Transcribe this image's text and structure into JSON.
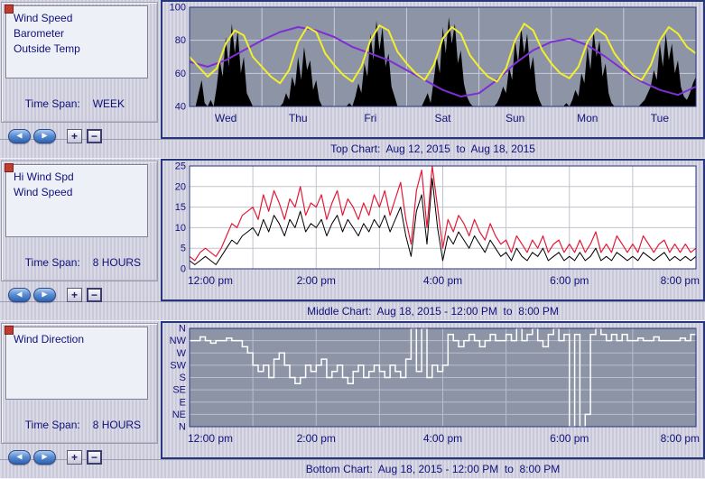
{
  "panels": [
    {
      "series_list": [
        "Wind Speed",
        "Barometer",
        "Outside Temp"
      ],
      "time_span_label": "Time Span:",
      "time_span_value": "WEEK"
    },
    {
      "series_list": [
        "Hi Wind Spd",
        "Wind Speed"
      ],
      "time_span_label": "Time Span:",
      "time_span_value": "8 HOURS"
    },
    {
      "series_list": [
        "Wind Direction"
      ],
      "time_span_label": "Time Span:",
      "time_span_value": "8 HOURS"
    }
  ],
  "captions": [
    "Top Chart:  Aug 12, 2015  to  Aug 18, 2015",
    "Middle Chart:  Aug 18, 2015 - 12:00 PM  to  8:00 PM",
    "Bottom Chart:  Aug 18, 2015 - 12:00 PM  to  8:00 PM"
  ],
  "controls": {
    "back_icon": "◀",
    "forward_icon": "▶",
    "zoom_in_label": "+",
    "zoom_out_label": "−"
  },
  "colors": {
    "text_navy": "#10107a",
    "chart_border": "#27357a",
    "temp_yellow": "#f2ef2e",
    "barometer_purple": "#7d2fd4",
    "hi_wind_red": "#e31937",
    "wind_black": "#000000",
    "direction_white": "#ffffff",
    "gray_plot_bg": "#8d94a5"
  },
  "chart_data": [
    {
      "type": "line",
      "title": "Top Chart:  Aug 12, 2015  to  Aug 18, 2015",
      "plot_bg": "#8d94a5",
      "grid_color": "#c9cedb",
      "border_color": "#27357a",
      "y_min": 40,
      "y_max": 100,
      "y_ticks": [
        {
          "v": 100,
          "label": "100"
        },
        {
          "v": 80,
          "label": "80"
        },
        {
          "v": 60,
          "label": "60"
        },
        {
          "v": 40,
          "label": "40"
        }
      ],
      "grid_y": [
        60,
        80
      ],
      "x_divisions": 7,
      "x_label_mode": "band",
      "x_labels": [
        "Wed",
        "Thu",
        "Fri",
        "Sat",
        "Sun",
        "Mon",
        "Tue"
      ],
      "series": [
        {
          "name": "Wind Speed",
          "type": "area",
          "color": "#000000",
          "width": 1,
          "values": [
            40,
            40,
            40,
            48,
            56,
            42,
            40,
            44,
            40,
            52,
            68,
            58,
            82,
            64,
            90,
            72,
            86,
            60,
            70,
            48,
            44,
            40,
            40,
            40,
            40,
            40,
            40,
            40,
            40,
            40,
            40,
            42,
            48,
            44,
            58,
            52,
            70,
            56,
            76,
            62,
            68,
            50,
            56,
            44,
            40,
            40,
            40,
            40,
            40,
            40,
            40,
            40,
            40,
            42,
            40,
            46,
            54,
            48,
            66,
            58,
            84,
            68,
            92,
            74,
            88,
            64,
            72,
            52,
            46,
            40,
            40,
            40,
            40,
            40,
            40,
            40,
            40,
            40,
            44,
            48,
            42,
            56,
            70,
            60,
            88,
            72,
            94,
            78,
            90,
            66,
            74,
            54,
            46,
            42,
            40,
            40,
            40,
            40,
            40,
            40,
            40,
            40,
            42,
            46,
            52,
            48,
            64,
            56,
            80,
            66,
            88,
            72,
            84,
            62,
            70,
            50,
            44,
            40,
            40,
            40,
            40,
            40,
            40,
            40,
            40,
            42,
            40,
            44,
            50,
            46,
            60,
            54,
            76,
            62,
            86,
            70,
            80,
            58,
            66,
            48,
            42,
            40,
            40,
            40,
            40,
            40,
            40,
            40,
            40,
            40,
            42,
            44,
            48,
            52,
            62,
            56,
            78,
            64,
            84,
            68,
            78,
            60,
            68,
            52,
            46,
            44,
            48,
            54,
            58
          ]
        },
        {
          "name": "Barometer",
          "type": "line",
          "color": "#7d2fd4",
          "width": 2,
          "values": [
            67,
            64,
            68,
            74,
            80,
            85,
            88,
            86,
            82,
            76,
            72,
            68,
            62,
            56,
            50,
            46,
            48,
            56,
            66,
            74,
            79,
            81,
            77,
            70,
            62,
            55,
            50,
            47,
            52
          ]
        },
        {
          "name": "Outside Temp",
          "type": "line",
          "color": "#f2ef2e",
          "width": 2,
          "values": [
            70,
            64,
            58,
            63,
            78,
            86,
            83,
            70,
            64,
            58,
            54,
            62,
            79,
            88,
            85,
            72,
            65,
            59,
            55,
            64,
            80,
            89,
            86,
            73,
            66,
            60,
            56,
            65,
            81,
            88,
            84,
            71,
            64,
            58,
            55,
            63,
            80,
            90,
            86,
            74,
            66,
            60,
            57,
            64,
            79,
            87,
            83,
            72,
            65,
            59,
            56,
            65,
            80,
            88,
            84,
            76,
            72
          ]
        }
      ]
    },
    {
      "type": "line",
      "title": "Middle Chart:  Aug 18, 2015 - 12:00 PM  to  8:00 PM",
      "plot_bg": "#ffffff",
      "grid_color": "#c0c3cc",
      "border_color": "#27357a",
      "y_min": 0,
      "y_max": 25,
      "y_ticks": [
        {
          "v": 25,
          "label": "25"
        },
        {
          "v": 20,
          "label": "20"
        },
        {
          "v": 15,
          "label": "15"
        },
        {
          "v": 10,
          "label": "10"
        },
        {
          "v": 5,
          "label": "5"
        },
        {
          "v": 0,
          "label": "0"
        }
      ],
      "grid_y": [
        5,
        10,
        15,
        20
      ],
      "x_divisions": 8,
      "x_label_mode": "tick",
      "x_labels": [
        "12:00 pm",
        "2:00 pm",
        "4:00 pm",
        "6:00 pm",
        "8:00 pm"
      ],
      "series": [
        {
          "name": "Hi Wind Spd",
          "type": "line",
          "color": "#e31937",
          "width": 1.2,
          "values": [
            3,
            2,
            4,
            5,
            4,
            3,
            5,
            8,
            11,
            10,
            13,
            14,
            15,
            12,
            18,
            14,
            19,
            16,
            12,
            17,
            15,
            20,
            13,
            16,
            15,
            18,
            12,
            16,
            19,
            13,
            17,
            15,
            12,
            16,
            13,
            18,
            15,
            19,
            13,
            17,
            21,
            12,
            6,
            19,
            24,
            10,
            25,
            15,
            5,
            12,
            9,
            13,
            11,
            8,
            12,
            9,
            7,
            11,
            8,
            6,
            7,
            4,
            8,
            6,
            4,
            7,
            5,
            8,
            4,
            6,
            7,
            4,
            6,
            4,
            7,
            4,
            6,
            9,
            4,
            6,
            4,
            8,
            6,
            4,
            6,
            4,
            8,
            6,
            4,
            6,
            7,
            4,
            6,
            4,
            6,
            4,
            5
          ]
        },
        {
          "name": "Wind Speed",
          "type": "line",
          "color": "#000000",
          "width": 1,
          "values": [
            2,
            1,
            2,
            3,
            2,
            1,
            3,
            5,
            7,
            6,
            8,
            9,
            10,
            8,
            12,
            9,
            13,
            11,
            8,
            12,
            10,
            14,
            9,
            11,
            10,
            12,
            8,
            11,
            13,
            9,
            12,
            10,
            8,
            11,
            9,
            12,
            10,
            13,
            9,
            12,
            15,
            8,
            3,
            14,
            18,
            6,
            22,
            10,
            2,
            8,
            6,
            9,
            7,
            5,
            8,
            6,
            4,
            7,
            5,
            3,
            4,
            2,
            5,
            3,
            2,
            4,
            3,
            5,
            2,
            3,
            4,
            2,
            3,
            2,
            4,
            2,
            3,
            5,
            2,
            3,
            2,
            4,
            3,
            2,
            3,
            2,
            4,
            3,
            2,
            3,
            4,
            2,
            3,
            2,
            3,
            2,
            3
          ]
        }
      ]
    },
    {
      "type": "line",
      "title": "Bottom Chart:  Aug 18, 2015 - 12:00 PM  to  8:00 PM",
      "plot_bg": "#8d94a5",
      "grid_color": "#b9bfcc",
      "border_color": "#27357a",
      "y_min": 0,
      "y_max": 8,
      "y_ticks": [
        {
          "v": 8,
          "label": "N"
        },
        {
          "v": 7,
          "label": "NW"
        },
        {
          "v": 6,
          "label": "W"
        },
        {
          "v": 5,
          "label": "SW"
        },
        {
          "v": 4,
          "label": "S"
        },
        {
          "v": 3,
          "label": "SE"
        },
        {
          "v": 2,
          "label": "E"
        },
        {
          "v": 1,
          "label": "NE"
        },
        {
          "v": 0,
          "label": "N"
        }
      ],
      "grid_y": [
        1,
        2,
        3,
        4,
        5,
        6,
        7
      ],
      "x_divisions": 8,
      "x_label_mode": "tick",
      "x_labels": [
        "12:00 pm",
        "2:00 pm",
        "4:00 pm",
        "6:00 pm",
        "8:00 pm"
      ],
      "series": [
        {
          "name": "Wind Direction",
          "type": "step",
          "color": "#ffffff",
          "width": 1.5,
          "values": [
            7,
            7,
            7.3,
            7,
            6.8,
            7,
            7,
            7.2,
            7,
            7,
            6.5,
            6,
            5,
            4.5,
            5,
            4,
            5.5,
            6,
            5,
            4,
            3.5,
            4,
            5,
            4.5,
            5,
            5.5,
            4,
            4.5,
            5,
            4,
            3.5,
            4.5,
            5,
            4,
            4.5,
            5,
            4.5,
            4,
            5,
            4.5,
            4,
            5.5,
            8,
            4.5,
            8,
            4,
            5,
            4.5,
            5,
            7.5,
            7,
            6.5,
            7,
            7.5,
            7,
            6.5,
            7,
            7.5,
            7,
            7,
            7.5,
            7,
            8,
            7,
            7.5,
            8,
            7,
            6.5,
            7.5,
            8,
            7,
            7.5,
            0,
            7.5,
            0,
            1,
            7.5,
            8,
            7.5,
            7,
            7.5,
            7,
            7.5,
            7,
            7,
            7.2,
            7,
            7,
            7.3,
            7,
            7,
            7,
            7,
            7.2,
            7,
            7.5,
            8
          ]
        }
      ]
    }
  ]
}
